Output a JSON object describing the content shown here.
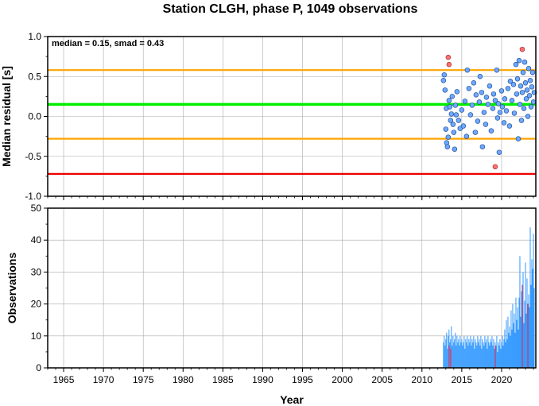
{
  "chart_data": {
    "title": "Station CLGH, phase P, 1049 observations",
    "xlabel": "Year",
    "x_range": [
      1963,
      2024.3
    ],
    "x_ticks": [
      1965,
      1970,
      1975,
      1980,
      1985,
      1990,
      1995,
      2000,
      2005,
      2010,
      2015,
      2020
    ],
    "grid": true,
    "colors": {
      "median_line": "#00ee00",
      "smad_lines": "#ffa500",
      "limit_line": "#ee0000",
      "normal_point": "#6fa8ff",
      "outlier_point": "#ff6f6f",
      "normal_bar": "#3399ff",
      "outlier_bar": "#ee2244"
    },
    "panels": [
      {
        "id": "residuals",
        "type": "scatter",
        "ylabel": "Median residual [s]",
        "ylim": [
          -1.0,
          1.0
        ],
        "y_ticks": [
          -1.0,
          -0.5,
          0.0,
          0.5,
          1.0
        ],
        "y_tick_labels": [
          "-1.0",
          "-0.5",
          "0.0",
          "0.5",
          "1.0"
        ],
        "annotation": "median = 0.15, smad = 0.43",
        "hlines": [
          {
            "y": 0.58,
            "role": "upper-smad"
          },
          {
            "y": 0.15,
            "role": "median"
          },
          {
            "y": -0.28,
            "role": "lower-smad"
          },
          {
            "y": -0.72,
            "role": "limit"
          }
        ],
        "points": [
          {
            "x": 2012.7,
            "y": 0.45
          },
          {
            "x": 2012.8,
            "y": 0.52
          },
          {
            "x": 2012.9,
            "y": 0.33
          },
          {
            "x": 2013.0,
            "y": -0.16
          },
          {
            "x": 2013.05,
            "y": 0.1
          },
          {
            "x": 2013.1,
            "y": -0.33
          },
          {
            "x": 2013.2,
            "y": -0.38
          },
          {
            "x": 2013.3,
            "y": -0.26
          },
          {
            "x": 2013.4,
            "y": 0.2
          },
          {
            "x": 2013.5,
            "y": 0.12
          },
          {
            "x": 2013.6,
            "y": -0.05
          },
          {
            "x": 2013.7,
            "y": 0.03
          },
          {
            "x": 2013.8,
            "y": 0.25
          },
          {
            "x": 2013.9,
            "y": -0.1
          },
          {
            "x": 2014.0,
            "y": -0.2
          },
          {
            "x": 2014.1,
            "y": -0.41
          },
          {
            "x": 2014.2,
            "y": 0.14
          },
          {
            "x": 2014.3,
            "y": 0.02
          },
          {
            "x": 2014.4,
            "y": 0.31
          },
          {
            "x": 2014.6,
            "y": -0.05
          },
          {
            "x": 2014.8,
            "y": -0.15
          },
          {
            "x": 2015.0,
            "y": 0.08
          },
          {
            "x": 2015.2,
            "y": -0.12
          },
          {
            "x": 2015.4,
            "y": 0.19
          },
          {
            "x": 2015.6,
            "y": -0.25
          },
          {
            "x": 2015.7,
            "y": 0.58
          },
          {
            "x": 2015.9,
            "y": 0.35
          },
          {
            "x": 2016.1,
            "y": 0.02
          },
          {
            "x": 2016.3,
            "y": 0.14
          },
          {
            "x": 2016.5,
            "y": 0.42
          },
          {
            "x": 2016.7,
            "y": -0.2
          },
          {
            "x": 2016.8,
            "y": 0.27
          },
          {
            "x": 2017.0,
            "y": -0.06
          },
          {
            "x": 2017.2,
            "y": 0.18
          },
          {
            "x": 2017.3,
            "y": 0.5
          },
          {
            "x": 2017.5,
            "y": 0.3
          },
          {
            "x": 2017.6,
            "y": -0.38
          },
          {
            "x": 2017.8,
            "y": 0.05
          },
          {
            "x": 2018.0,
            "y": -0.1
          },
          {
            "x": 2018.1,
            "y": 0.24
          },
          {
            "x": 2018.3,
            "y": 0.15
          },
          {
            "x": 2018.5,
            "y": 0.38
          },
          {
            "x": 2018.7,
            "y": -0.18
          },
          {
            "x": 2018.9,
            "y": 0.1
          },
          {
            "x": 2019.0,
            "y": 0.28
          },
          {
            "x": 2019.2,
            "y": 0.2
          },
          {
            "x": 2019.4,
            "y": 0.58
          },
          {
            "x": 2019.5,
            "y": -0.02
          },
          {
            "x": 2019.6,
            "y": 0.16
          },
          {
            "x": 2019.7,
            "y": -0.45
          },
          {
            "x": 2019.8,
            "y": 0.05
          },
          {
            "x": 2020.0,
            "y": 0.32
          },
          {
            "x": 2020.1,
            "y": 0.12
          },
          {
            "x": 2020.3,
            "y": -0.08
          },
          {
            "x": 2020.4,
            "y": 0.22
          },
          {
            "x": 2020.6,
            "y": 0.07
          },
          {
            "x": 2020.8,
            "y": 0.35
          },
          {
            "x": 2021.0,
            "y": -0.12
          },
          {
            "x": 2021.1,
            "y": 0.44
          },
          {
            "x": 2021.3,
            "y": 0.2
          },
          {
            "x": 2021.5,
            "y": 0.4
          },
          {
            "x": 2021.6,
            "y": 0.04
          },
          {
            "x": 2021.8,
            "y": 0.65
          },
          {
            "x": 2021.9,
            "y": 0.28
          },
          {
            "x": 2022.0,
            "y": 0.47
          },
          {
            "x": 2022.1,
            "y": -0.28
          },
          {
            "x": 2022.2,
            "y": 0.7
          },
          {
            "x": 2022.3,
            "y": 0.15
          },
          {
            "x": 2022.4,
            "y": 0.38
          },
          {
            "x": 2022.5,
            "y": -0.05
          },
          {
            "x": 2022.6,
            "y": 0.3
          },
          {
            "x": 2022.7,
            "y": 0.55
          },
          {
            "x": 2022.8,
            "y": 0.1
          },
          {
            "x": 2022.9,
            "y": 0.68
          },
          {
            "x": 2023.0,
            "y": 0.42
          },
          {
            "x": 2023.1,
            "y": 0.22
          },
          {
            "x": 2023.2,
            "y": 0.33
          },
          {
            "x": 2023.3,
            "y": 0.0
          },
          {
            "x": 2023.4,
            "y": 0.6
          },
          {
            "x": 2023.5,
            "y": 0.26
          },
          {
            "x": 2023.6,
            "y": 0.45
          },
          {
            "x": 2023.7,
            "y": 0.12
          },
          {
            "x": 2023.8,
            "y": 0.37
          },
          {
            "x": 2023.9,
            "y": 0.55
          },
          {
            "x": 2024.0,
            "y": 0.18
          },
          {
            "x": 2024.1,
            "y": 0.3
          }
        ],
        "outlier_points": [
          {
            "x": 2013.3,
            "y": 0.74
          },
          {
            "x": 2013.4,
            "y": 0.65
          },
          {
            "x": 2019.2,
            "y": -0.63
          },
          {
            "x": 2022.6,
            "y": 0.84
          }
        ]
      },
      {
        "id": "observations",
        "type": "bar",
        "ylabel": "Observations",
        "ylim": [
          0,
          50
        ],
        "y_ticks": [
          0,
          10,
          20,
          30,
          40,
          50
        ],
        "y_tick_labels": [
          "0",
          "10",
          "20",
          "30",
          "40",
          "50"
        ],
        "bars": [
          {
            "x": 2012.7,
            "v": 8
          },
          {
            "x": 2012.8,
            "v": 10
          },
          {
            "x": 2012.9,
            "v": 7
          },
          {
            "x": 2013.0,
            "v": 9
          },
          {
            "x": 2013.1,
            "v": 11
          },
          {
            "x": 2013.2,
            "v": 6
          },
          {
            "x": 2013.3,
            "v": 10
          },
          {
            "x": 2013.4,
            "v": 12
          },
          {
            "x": 2013.5,
            "v": 8
          },
          {
            "x": 2013.6,
            "v": 9
          },
          {
            "x": 2013.7,
            "v": 13
          },
          {
            "x": 2013.8,
            "v": 7
          },
          {
            "x": 2013.9,
            "v": 10
          },
          {
            "x": 2014.0,
            "v": 8
          },
          {
            "x": 2014.1,
            "v": 9
          },
          {
            "x": 2014.2,
            "v": 11
          },
          {
            "x": 2014.3,
            "v": 7
          },
          {
            "x": 2014.4,
            "v": 10
          },
          {
            "x": 2014.5,
            "v": 8
          },
          {
            "x": 2014.6,
            "v": 9
          },
          {
            "x": 2014.7,
            "v": 7
          },
          {
            "x": 2014.8,
            "v": 10
          },
          {
            "x": 2014.9,
            "v": 8
          },
          {
            "x": 2015.0,
            "v": 9
          },
          {
            "x": 2015.1,
            "v": 7
          },
          {
            "x": 2015.2,
            "v": 8
          },
          {
            "x": 2015.3,
            "v": 10
          },
          {
            "x": 2015.4,
            "v": 6
          },
          {
            "x": 2015.5,
            "v": 9
          },
          {
            "x": 2015.6,
            "v": 8
          },
          {
            "x": 2015.7,
            "v": 10
          },
          {
            "x": 2015.8,
            "v": 7
          },
          {
            "x": 2015.9,
            "v": 9
          },
          {
            "x": 2016.0,
            "v": 8
          },
          {
            "x": 2016.1,
            "v": 10
          },
          {
            "x": 2016.2,
            "v": 7
          },
          {
            "x": 2016.3,
            "v": 9
          },
          {
            "x": 2016.4,
            "v": 8
          },
          {
            "x": 2016.5,
            "v": 10
          },
          {
            "x": 2016.6,
            "v": 6
          },
          {
            "x": 2016.7,
            "v": 9
          },
          {
            "x": 2016.8,
            "v": 8
          },
          {
            "x": 2016.9,
            "v": 7
          },
          {
            "x": 2017.0,
            "v": 10
          },
          {
            "x": 2017.1,
            "v": 8
          },
          {
            "x": 2017.2,
            "v": 9
          },
          {
            "x": 2017.3,
            "v": 7
          },
          {
            "x": 2017.4,
            "v": 10
          },
          {
            "x": 2017.5,
            "v": 6
          },
          {
            "x": 2017.6,
            "v": 9
          },
          {
            "x": 2017.7,
            "v": 8
          },
          {
            "x": 2017.8,
            "v": 7
          },
          {
            "x": 2017.9,
            "v": 10
          },
          {
            "x": 2018.0,
            "v": 8
          },
          {
            "x": 2018.1,
            "v": 9
          },
          {
            "x": 2018.2,
            "v": 6
          },
          {
            "x": 2018.3,
            "v": 10
          },
          {
            "x": 2018.4,
            "v": 8
          },
          {
            "x": 2018.5,
            "v": 7
          },
          {
            "x": 2018.6,
            "v": 9
          },
          {
            "x": 2018.7,
            "v": 8
          },
          {
            "x": 2018.8,
            "v": 10
          },
          {
            "x": 2018.9,
            "v": 7
          },
          {
            "x": 2019.0,
            "v": 9
          },
          {
            "x": 2019.1,
            "v": 6
          },
          {
            "x": 2019.2,
            "v": 8
          },
          {
            "x": 2019.3,
            "v": 7
          },
          {
            "x": 2019.4,
            "v": 10
          },
          {
            "x": 2019.5,
            "v": 5
          },
          {
            "x": 2019.6,
            "v": 8
          },
          {
            "x": 2019.7,
            "v": 7
          },
          {
            "x": 2019.8,
            "v": 9
          },
          {
            "x": 2019.9,
            "v": 6
          },
          {
            "x": 2020.0,
            "v": 8
          },
          {
            "x": 2020.1,
            "v": 10
          },
          {
            "x": 2020.2,
            "v": 7
          },
          {
            "x": 2020.3,
            "v": 9
          },
          {
            "x": 2020.4,
            "v": 12
          },
          {
            "x": 2020.5,
            "v": 8
          },
          {
            "x": 2020.6,
            "v": 15
          },
          {
            "x": 2020.7,
            "v": 9
          },
          {
            "x": 2020.8,
            "v": 16
          },
          {
            "x": 2020.9,
            "v": 11
          },
          {
            "x": 2021.0,
            "v": 13
          },
          {
            "x": 2021.1,
            "v": 10
          },
          {
            "x": 2021.2,
            "v": 18
          },
          {
            "x": 2021.3,
            "v": 12
          },
          {
            "x": 2021.4,
            "v": 20
          },
          {
            "x": 2021.5,
            "v": 14
          },
          {
            "x": 2021.6,
            "v": 17
          },
          {
            "x": 2021.7,
            "v": 11
          },
          {
            "x": 2021.8,
            "v": 22
          },
          {
            "x": 2021.9,
            "v": 15
          },
          {
            "x": 2022.0,
            "v": 19
          },
          {
            "x": 2022.1,
            "v": 12
          },
          {
            "x": 2022.2,
            "v": 22
          },
          {
            "x": 2022.3,
            "v": 35
          },
          {
            "x": 2022.4,
            "v": 16
          },
          {
            "x": 2022.5,
            "v": 24
          },
          {
            "x": 2022.6,
            "v": 18
          },
          {
            "x": 2022.7,
            "v": 30
          },
          {
            "x": 2022.8,
            "v": 14
          },
          {
            "x": 2022.9,
            "v": 21
          },
          {
            "x": 2023.0,
            "v": 33
          },
          {
            "x": 2023.1,
            "v": 17
          },
          {
            "x": 2023.2,
            "v": 28
          },
          {
            "x": 2023.3,
            "v": 20
          },
          {
            "x": 2023.4,
            "v": 23
          },
          {
            "x": 2023.5,
            "v": 19
          },
          {
            "x": 2023.6,
            "v": 44
          },
          {
            "x": 2023.7,
            "v": 26
          },
          {
            "x": 2023.8,
            "v": 34
          },
          {
            "x": 2023.9,
            "v": 31
          },
          {
            "x": 2024.0,
            "v": 42
          },
          {
            "x": 2024.1,
            "v": 25
          }
        ],
        "outlier_bars": [
          {
            "x": 2013.4,
            "v": 7
          },
          {
            "x": 2013.6,
            "v": 6
          },
          {
            "x": 2019.2,
            "v": 7
          },
          {
            "x": 2022.6,
            "v": 26
          },
          {
            "x": 2023.3,
            "v": 20
          }
        ]
      }
    ]
  }
}
